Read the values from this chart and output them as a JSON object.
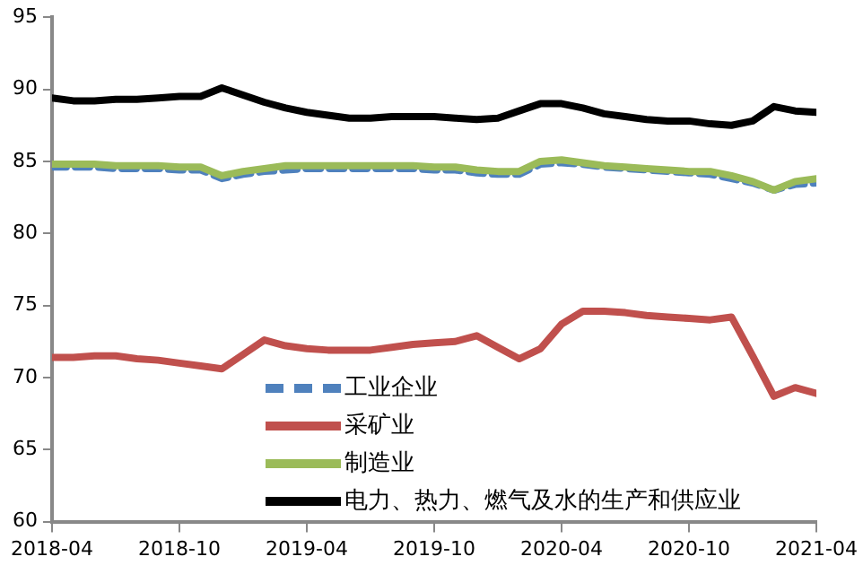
{
  "chart_data": {
    "type": "line",
    "x": [
      "2018-04",
      "2018-05",
      "2018-06",
      "2018-07",
      "2018-08",
      "2018-09",
      "2018-10",
      "2018-11",
      "2018-12",
      "2019-01",
      "2019-02",
      "2019-03",
      "2019-04",
      "2019-05",
      "2019-06",
      "2019-07",
      "2019-08",
      "2019-09",
      "2019-10",
      "2019-11",
      "2019-12",
      "2020-01",
      "2020-02",
      "2020-03",
      "2020-04",
      "2020-05",
      "2020-06",
      "2020-07",
      "2020-08",
      "2020-09",
      "2020-10",
      "2020-11",
      "2020-12",
      "2021-01",
      "2021-02",
      "2021-03",
      "2021-04"
    ],
    "series": [
      {
        "name": "工业企业",
        "color": "#4f81bd",
        "line_style": "dashed",
        "values": [
          84.6,
          84.6,
          84.6,
          84.5,
          84.5,
          84.5,
          84.4,
          84.4,
          83.8,
          84.1,
          84.3,
          84.4,
          84.5,
          84.5,
          84.5,
          84.5,
          84.5,
          84.5,
          84.4,
          84.4,
          84.2,
          84.1,
          84.1,
          84.8,
          84.9,
          84.8,
          84.6,
          84.5,
          84.4,
          84.3,
          84.2,
          84.1,
          83.8,
          83.5,
          83.0,
          83.4,
          83.5
        ]
      },
      {
        "name": "采矿业",
        "color": "#c0504d",
        "values": [
          71.4,
          71.4,
          71.5,
          71.5,
          71.3,
          71.2,
          71.0,
          70.8,
          70.6,
          71.6,
          72.6,
          72.2,
          72.0,
          71.9,
          71.9,
          71.9,
          72.1,
          72.3,
          72.4,
          72.5,
          72.9,
          72.1,
          71.3,
          72.0,
          73.7,
          74.6,
          74.6,
          74.5,
          74.3,
          74.2,
          74.1,
          74.0,
          74.2,
          71.5,
          68.7,
          69.3,
          68.9
        ]
      },
      {
        "name": "制造业",
        "color": "#9bbb59",
        "values": [
          84.8,
          84.8,
          84.8,
          84.7,
          84.7,
          84.7,
          84.6,
          84.6,
          84.0,
          84.3,
          84.5,
          84.7,
          84.7,
          84.7,
          84.7,
          84.7,
          84.7,
          84.7,
          84.6,
          84.6,
          84.4,
          84.3,
          84.3,
          85.0,
          85.1,
          84.9,
          84.7,
          84.6,
          84.5,
          84.4,
          84.3,
          84.3,
          84.0,
          83.6,
          83.0,
          83.6,
          83.8
        ]
      },
      {
        "name": "电力、热力、燃气及水的生产和供应业",
        "color": "#000000",
        "values": [
          89.4,
          89.2,
          89.2,
          89.3,
          89.3,
          89.4,
          89.5,
          89.5,
          90.1,
          89.6,
          89.1,
          88.7,
          88.4,
          88.2,
          88.0,
          88.0,
          88.1,
          88.1,
          88.1,
          88.0,
          87.9,
          88.0,
          88.5,
          89.0,
          89.0,
          88.7,
          88.3,
          88.1,
          87.9,
          87.8,
          87.8,
          87.6,
          87.5,
          87.8,
          88.8,
          88.5,
          88.4
        ]
      }
    ],
    "xlim": [
      "2018-04",
      "2021-04"
    ],
    "xticks": [
      "2018-04",
      "2018-10",
      "2019-04",
      "2019-10",
      "2020-04",
      "2020-10",
      "2021-04"
    ],
    "ylim": [
      60,
      95
    ],
    "yticks": [
      60,
      65,
      70,
      75,
      80,
      85,
      90,
      95
    ],
    "grid": false,
    "legend": "bottom",
    "marker": "none",
    "line_style": "solid"
  }
}
